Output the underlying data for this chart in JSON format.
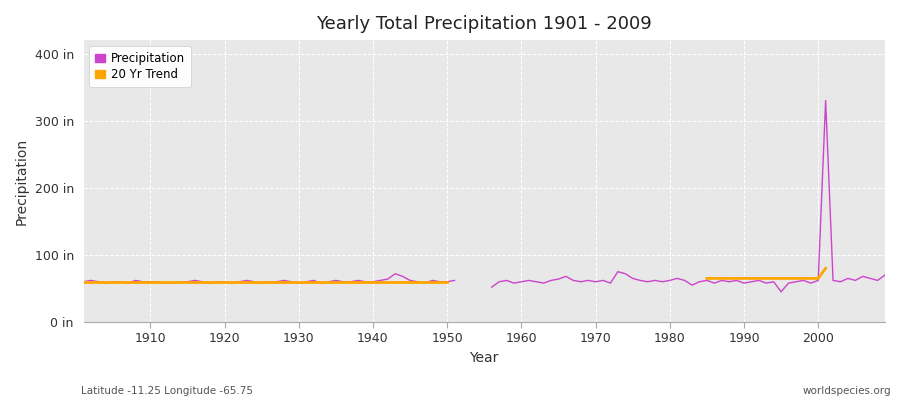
{
  "title": "Yearly Total Precipitation 1901 - 2009",
  "xlabel": "Year",
  "ylabel": "Precipitation",
  "footnote_left": "Latitude -11.25 Longitude -65.75",
  "footnote_right": "worldspecies.org",
  "ylim": [
    0,
    420
  ],
  "yticks": [
    0,
    100,
    200,
    300,
    400
  ],
  "ytick_labels": [
    "0 in",
    "100 in",
    "200 in",
    "300 in",
    "400 in"
  ],
  "bg_color": "#e8e8e8",
  "fig_color": "#ffffff",
  "precip_color": "#cc44cc",
  "trend_color": "#ffa500",
  "precip_data": {
    "years": [
      1901,
      1902,
      1903,
      1904,
      1905,
      1906,
      1907,
      1908,
      1909,
      1910,
      1911,
      1912,
      1913,
      1914,
      1915,
      1916,
      1917,
      1918,
      1919,
      1920,
      1921,
      1922,
      1923,
      1924,
      1925,
      1926,
      1927,
      1928,
      1929,
      1930,
      1931,
      1932,
      1933,
      1934,
      1935,
      1936,
      1937,
      1938,
      1939,
      1940,
      1941,
      1942,
      1943,
      1944,
      1945,
      1946,
      1947,
      1948,
      1949,
      1950,
      1951,
      1956,
      1957,
      1958,
      1959,
      1960,
      1961,
      1962,
      1963,
      1964,
      1965,
      1966,
      1967,
      1968,
      1969,
      1970,
      1971,
      1972,
      1973,
      1974,
      1975,
      1976,
      1977,
      1978,
      1979,
      1980,
      1981,
      1982,
      1983,
      1984,
      1985,
      1986,
      1987,
      1988,
      1989,
      1990,
      1991,
      1992,
      1993,
      1994,
      1995,
      1996,
      1997,
      1998,
      1999,
      2000,
      2001,
      2002,
      2003,
      2004,
      2005,
      2006,
      2007,
      2008,
      2009
    ],
    "values": [
      60,
      62,
      60,
      58,
      60,
      60,
      58,
      62,
      60,
      60,
      60,
      58,
      58,
      60,
      60,
      62,
      60,
      58,
      60,
      60,
      58,
      60,
      62,
      60,
      58,
      60,
      60,
      62,
      60,
      58,
      60,
      62,
      58,
      60,
      62,
      60,
      60,
      62,
      60,
      60,
      62,
      64,
      72,
      68,
      62,
      60,
      58,
      62,
      60,
      60,
      62,
      52,
      60,
      62,
      58,
      60,
      62,
      60,
      58,
      62,
      64,
      68,
      62,
      60,
      62,
      60,
      62,
      58,
      75,
      72,
      65,
      62,
      60,
      62,
      60,
      62,
      65,
      62,
      55,
      60,
      62,
      58,
      62,
      60,
      62,
      58,
      60,
      62,
      58,
      60,
      45,
      58,
      60,
      62,
      58,
      62,
      330,
      62,
      60,
      65,
      62,
      68,
      65,
      62,
      70
    ]
  },
  "trend_data": {
    "years": [
      1901,
      1902,
      1903,
      1904,
      1905,
      1906,
      1907,
      1908,
      1909,
      1910,
      1911,
      1912,
      1913,
      1914,
      1915,
      1916,
      1917,
      1918,
      1919,
      1920,
      1921,
      1922,
      1923,
      1924,
      1925,
      1926,
      1927,
      1928,
      1929,
      1930,
      1931,
      1932,
      1933,
      1934,
      1935,
      1936,
      1937,
      1938,
      1939,
      1940,
      1941,
      1942,
      1943,
      1944,
      1945,
      1946,
      1947,
      1948,
      1949,
      1950,
      1985,
      1986,
      1987,
      1988,
      1989,
      1990,
      1991,
      1992,
      1993,
      1994,
      1995,
      1996,
      1997,
      1998,
      1999,
      2000,
      2001
    ],
    "values": [
      60,
      60,
      60,
      60,
      60,
      60,
      60,
      60,
      60,
      60,
      60,
      60,
      60,
      60,
      60,
      60,
      60,
      60,
      60,
      60,
      60,
      60,
      60,
      60,
      60,
      60,
      60,
      60,
      60,
      60,
      60,
      60,
      60,
      60,
      60,
      60,
      60,
      60,
      60,
      60,
      60,
      60,
      60,
      60,
      60,
      60,
      60,
      60,
      60,
      60,
      65,
      65,
      65,
      65,
      65,
      65,
      65,
      65,
      65,
      65,
      65,
      65,
      65,
      65,
      65,
      65,
      80
    ]
  },
  "legend_entries": [
    "Precipitation",
    "20 Yr Trend"
  ],
  "legend_colors": [
    "#cc44cc",
    "#ffa500"
  ],
  "xlim": [
    1901,
    2009
  ],
  "xticks": [
    1910,
    1920,
    1930,
    1940,
    1950,
    1960,
    1970,
    1980,
    1990,
    2000
  ]
}
